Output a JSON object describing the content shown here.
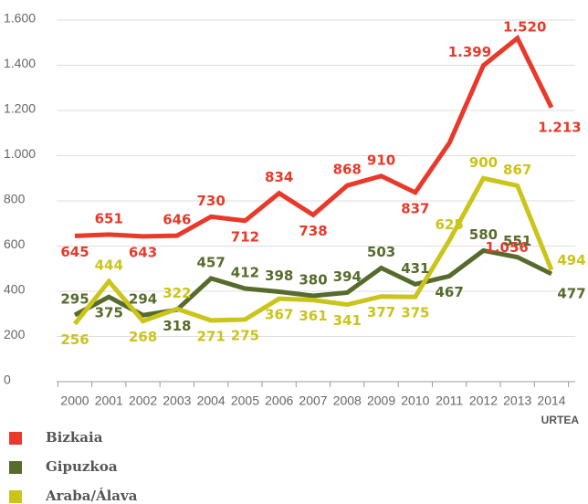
{
  "chart_data": {
    "type": "line",
    "categories": [
      "2000",
      "2001",
      "2002",
      "2003",
      "2004",
      "2005",
      "2006",
      "2007",
      "2008",
      "2009",
      "2010",
      "2011",
      "2012",
      "2013",
      "2014"
    ],
    "x_label": "URTEA",
    "series": [
      {
        "name": "Bizkaia",
        "color": "#e8392a",
        "values": [
          645,
          651,
          643,
          646,
          730,
          712,
          834,
          738,
          868,
          910,
          837,
          1056,
          1399,
          1520,
          1213
        ],
        "value_labels": [
          "645",
          "651",
          "643",
          "646",
          "730",
          "712",
          "834",
          "738",
          "868",
          "910",
          "837",
          "1.056",
          "1.399",
          "1.520",
          "1.213"
        ]
      },
      {
        "name": "Gipuzkoa",
        "color": "#566b2c",
        "values": [
          295,
          375,
          294,
          318,
          457,
          412,
          398,
          380,
          394,
          503,
          431,
          467,
          580,
          551,
          477
        ]
      },
      {
        "name": "Araba/Álava",
        "color": "#cbc41a",
        "values": [
          256,
          444,
          268,
          322,
          271,
          275,
          367,
          361,
          341,
          377,
          375,
          625,
          900,
          867,
          494
        ]
      }
    ],
    "ylim": [
      0,
      1600
    ],
    "yticks": [
      0,
      200,
      400,
      600,
      800,
      {
        "value": 1000,
        "label": "1.000"
      },
      {
        "value": 1200,
        "label": "1.200"
      },
      {
        "value": 1400,
        "label": "1.400"
      },
      {
        "value": 1600,
        "label": "1.600"
      }
    ],
    "grid": true,
    "legend": "bottom-left"
  }
}
